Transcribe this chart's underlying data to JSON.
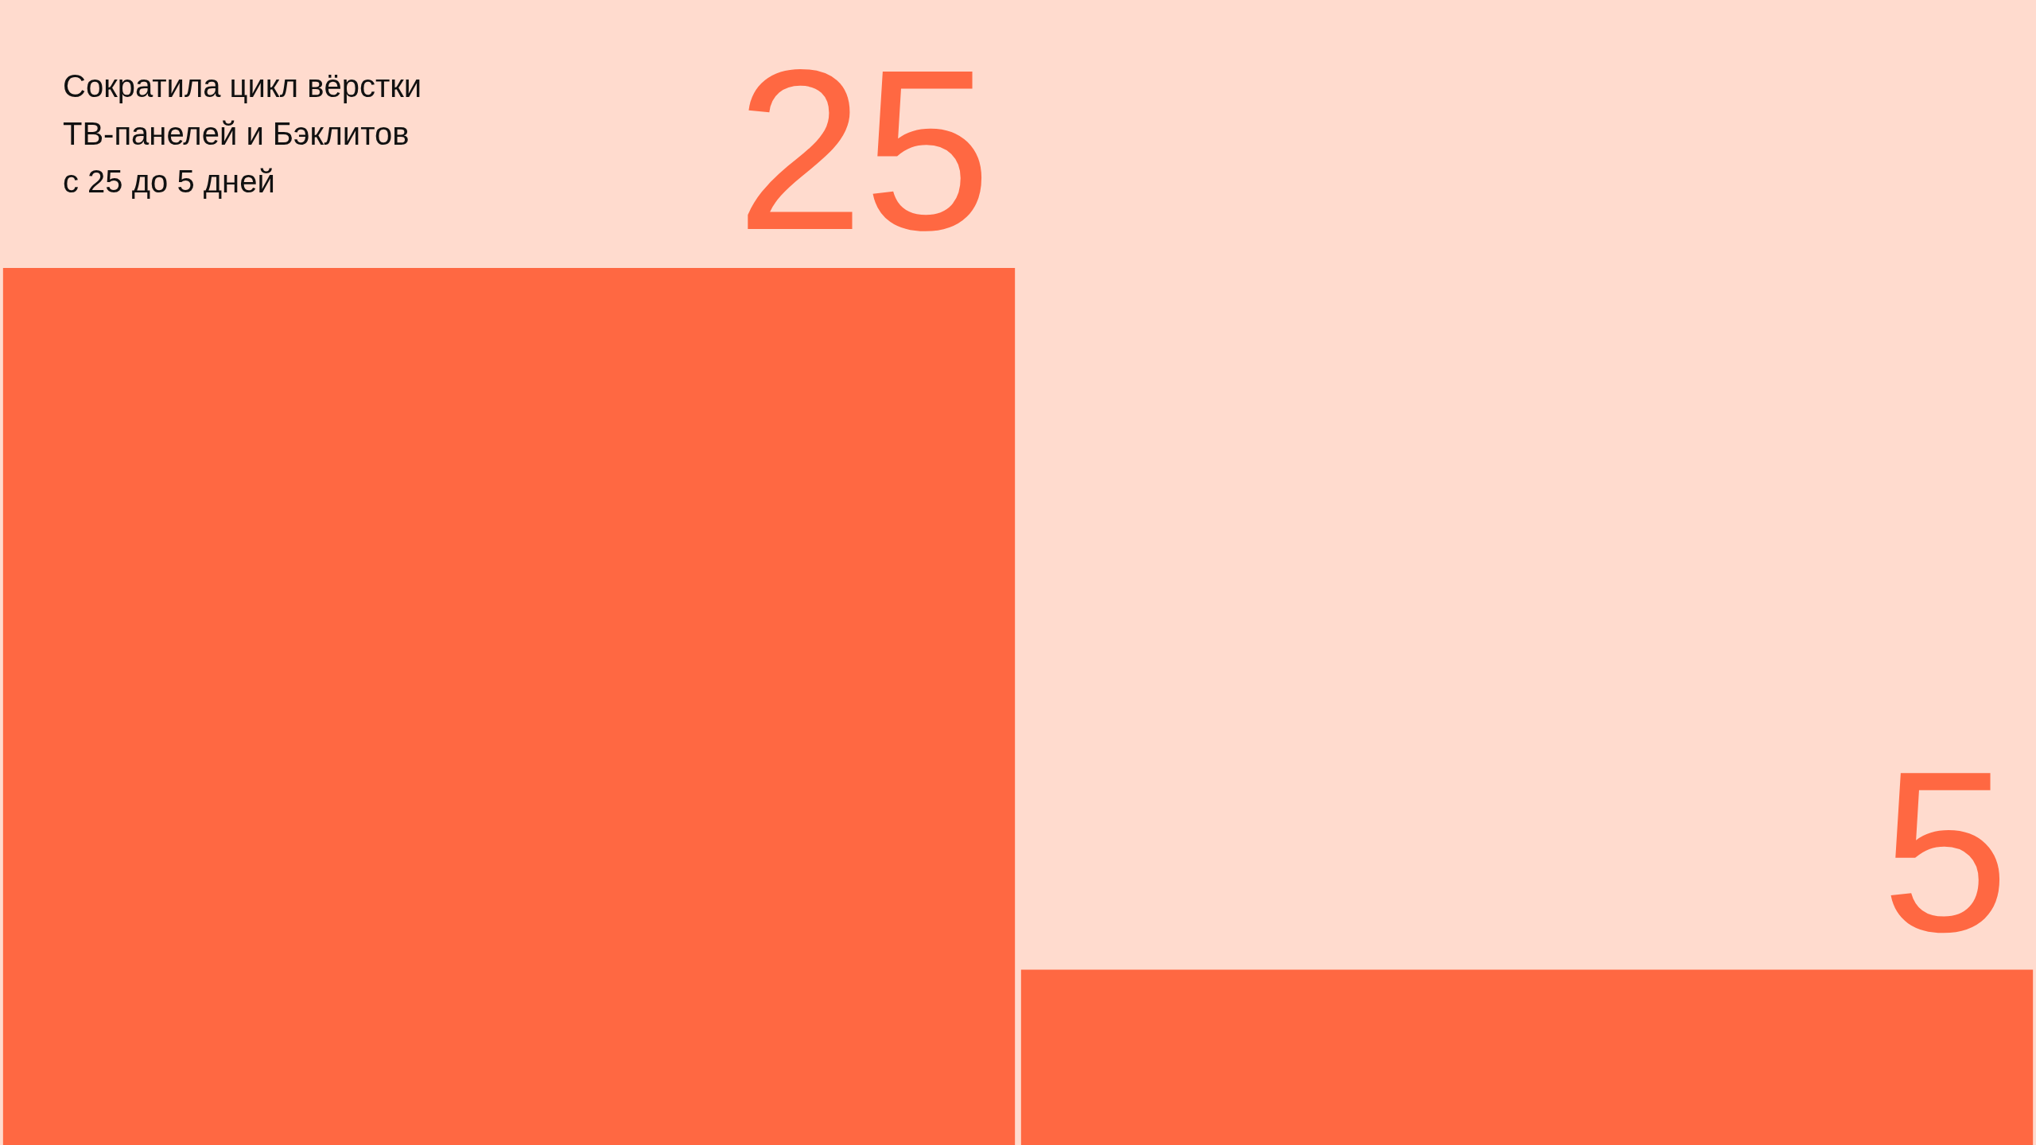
{
  "chart_data": {
    "type": "bar",
    "title": "Сократила цикл вёрстки\nТВ-панелей и Бэклитов\nс 25 до 5 дней",
    "categories": [
      null,
      null
    ],
    "values": [
      25,
      5
    ],
    "color": "#ff6842",
    "ylim": [
      0,
      32.64
    ],
    "data_labels": true,
    "tick_labels": false
  }
}
